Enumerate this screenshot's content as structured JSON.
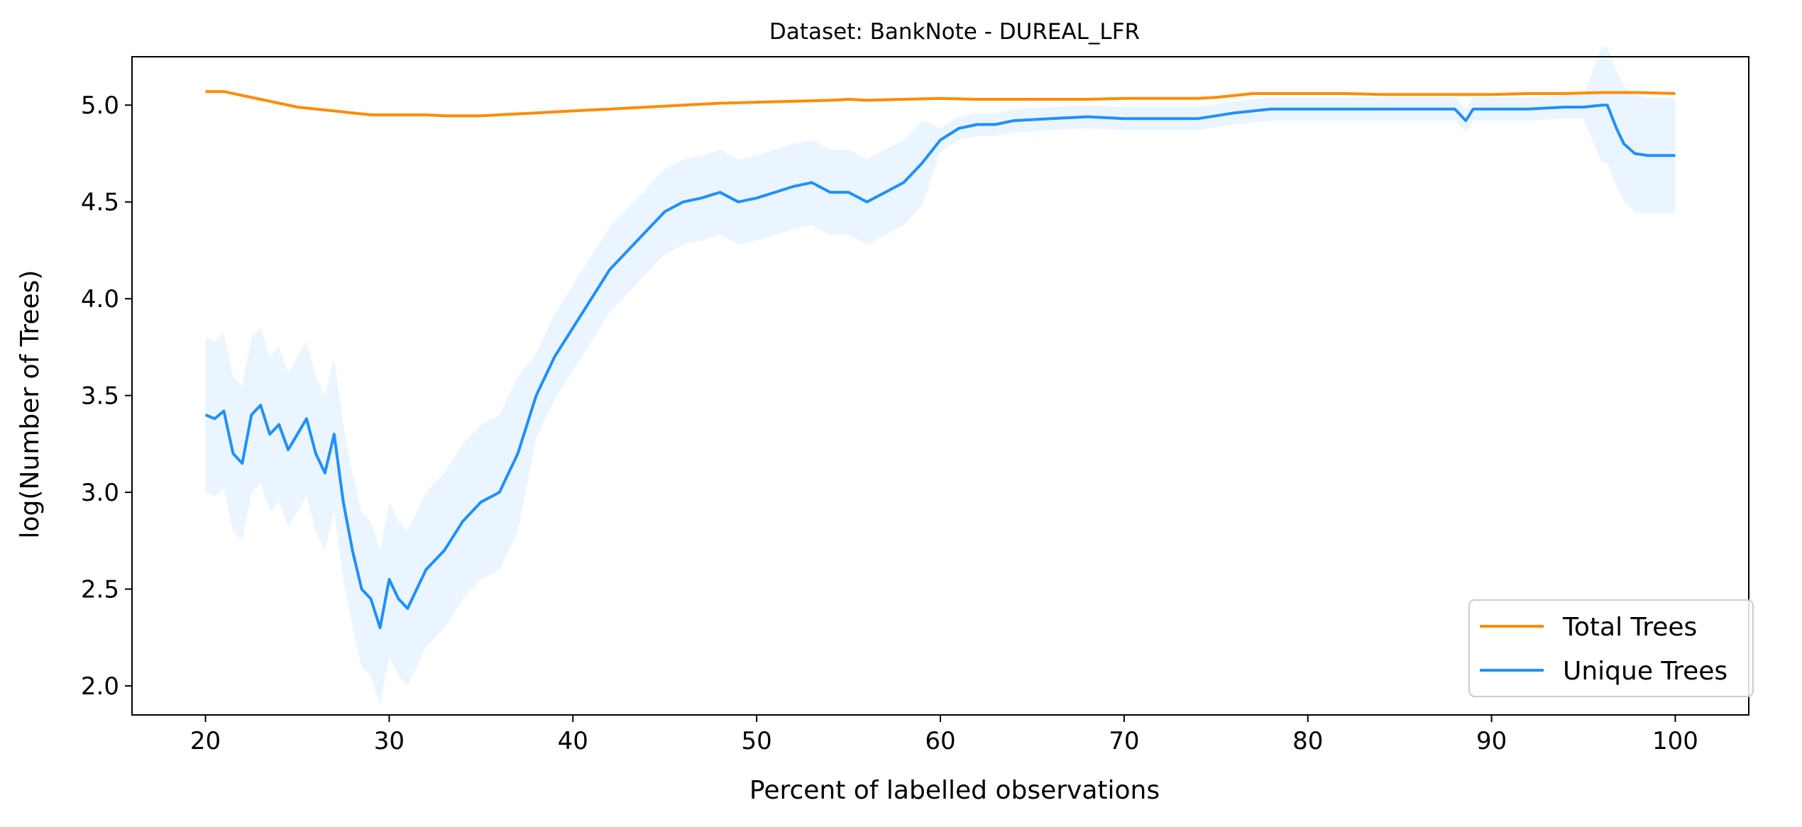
{
  "chart_data": {
    "type": "line",
    "title": "Dataset: BankNote - DUREAL_LFR",
    "xlabel": "Percent of labelled observations",
    "ylabel": "log(Number of Trees)",
    "xlim": [
      16,
      104
    ],
    "ylim": [
      1.85,
      5.25
    ],
    "xticks": [
      20,
      30,
      40,
      50,
      60,
      70,
      80,
      90,
      100
    ],
    "yticks": [
      2.0,
      2.5,
      3.0,
      3.5,
      4.0,
      4.5,
      5.0
    ],
    "xtick_labels": [
      "20",
      "30",
      "40",
      "50",
      "60",
      "70",
      "80",
      "90",
      "100"
    ],
    "ytick_labels": [
      "2.0",
      "2.5",
      "3.0",
      "3.5",
      "4.0",
      "4.5",
      "5.0"
    ],
    "grid": false,
    "legend_position": "lower-right",
    "colors": {
      "total": "#ff8c00",
      "unique": "#1e90ff",
      "band": "#ddeeff"
    },
    "series": [
      {
        "name": "Total Trees",
        "x": [
          20,
          21,
          22,
          23,
          24,
          25,
          26,
          27,
          28,
          29,
          30,
          31,
          32,
          33,
          34,
          35,
          36,
          37,
          38,
          39,
          40,
          42,
          44,
          46,
          48,
          50,
          52,
          54,
          55,
          56,
          58,
          60,
          62,
          64,
          66,
          68,
          70,
          72,
          74,
          75,
          76,
          77,
          78,
          80,
          82,
          84,
          86,
          88,
          90,
          92,
          94,
          96,
          98,
          100
        ],
        "y": [
          5.07,
          5.07,
          5.05,
          5.03,
          5.01,
          4.99,
          4.98,
          4.97,
          4.96,
          4.95,
          4.95,
          4.95,
          4.95,
          4.945,
          4.945,
          4.945,
          4.95,
          4.955,
          4.96,
          4.965,
          4.97,
          4.98,
          4.99,
          5.0,
          5.01,
          5.015,
          5.02,
          5.025,
          5.03,
          5.025,
          5.03,
          5.035,
          5.03,
          5.03,
          5.03,
          5.03,
          5.035,
          5.035,
          5.035,
          5.04,
          5.05,
          5.06,
          5.06,
          5.06,
          5.06,
          5.055,
          5.055,
          5.055,
          5.055,
          5.06,
          5.06,
          5.065,
          5.065,
          5.06
        ]
      },
      {
        "name": "Unique Trees",
        "x": [
          20,
          20.5,
          21,
          21.5,
          22,
          22.5,
          23,
          23.5,
          24,
          24.5,
          25,
          25.5,
          26,
          26.5,
          27,
          27.5,
          28,
          28.5,
          29,
          29.5,
          30,
          30.5,
          31,
          31.5,
          32,
          32.5,
          33,
          34,
          35,
          36,
          37,
          38,
          39,
          40,
          41,
          42,
          43,
          44,
          45,
          46,
          47,
          48,
          49,
          50,
          51,
          52,
          53,
          54,
          55,
          56,
          57,
          58,
          59,
          60,
          61,
          62,
          63,
          64,
          66,
          68,
          70,
          72,
          74,
          76,
          78,
          80,
          82,
          84,
          86,
          88,
          88.6,
          89,
          90,
          92,
          94,
          95,
          96,
          96.3,
          96.8,
          97.2,
          97.8,
          98.5,
          99,
          100
        ],
        "y": [
          3.4,
          3.38,
          3.42,
          3.2,
          3.15,
          3.4,
          3.45,
          3.3,
          3.35,
          3.22,
          3.3,
          3.38,
          3.2,
          3.1,
          3.3,
          2.95,
          2.7,
          2.5,
          2.45,
          2.3,
          2.55,
          2.45,
          2.4,
          2.5,
          2.6,
          2.65,
          2.7,
          2.85,
          2.95,
          3.0,
          3.2,
          3.5,
          3.7,
          3.85,
          4.0,
          4.15,
          4.25,
          4.35,
          4.45,
          4.5,
          4.52,
          4.55,
          4.5,
          4.52,
          4.55,
          4.58,
          4.6,
          4.55,
          4.55,
          4.5,
          4.55,
          4.6,
          4.7,
          4.82,
          4.88,
          4.9,
          4.9,
          4.92,
          4.93,
          4.94,
          4.93,
          4.93,
          4.93,
          4.96,
          4.98,
          4.98,
          4.98,
          4.98,
          4.98,
          4.98,
          4.92,
          4.98,
          4.98,
          4.98,
          4.99,
          4.99,
          5.0,
          5.0,
          4.88,
          4.8,
          4.75,
          4.74,
          4.74,
          4.74
        ]
      }
    ]
  },
  "legend": {
    "items": [
      {
        "label": "Total Trees",
        "color": "#ff8c00"
      },
      {
        "label": "Unique Trees",
        "color": "#1e90ff"
      }
    ]
  }
}
